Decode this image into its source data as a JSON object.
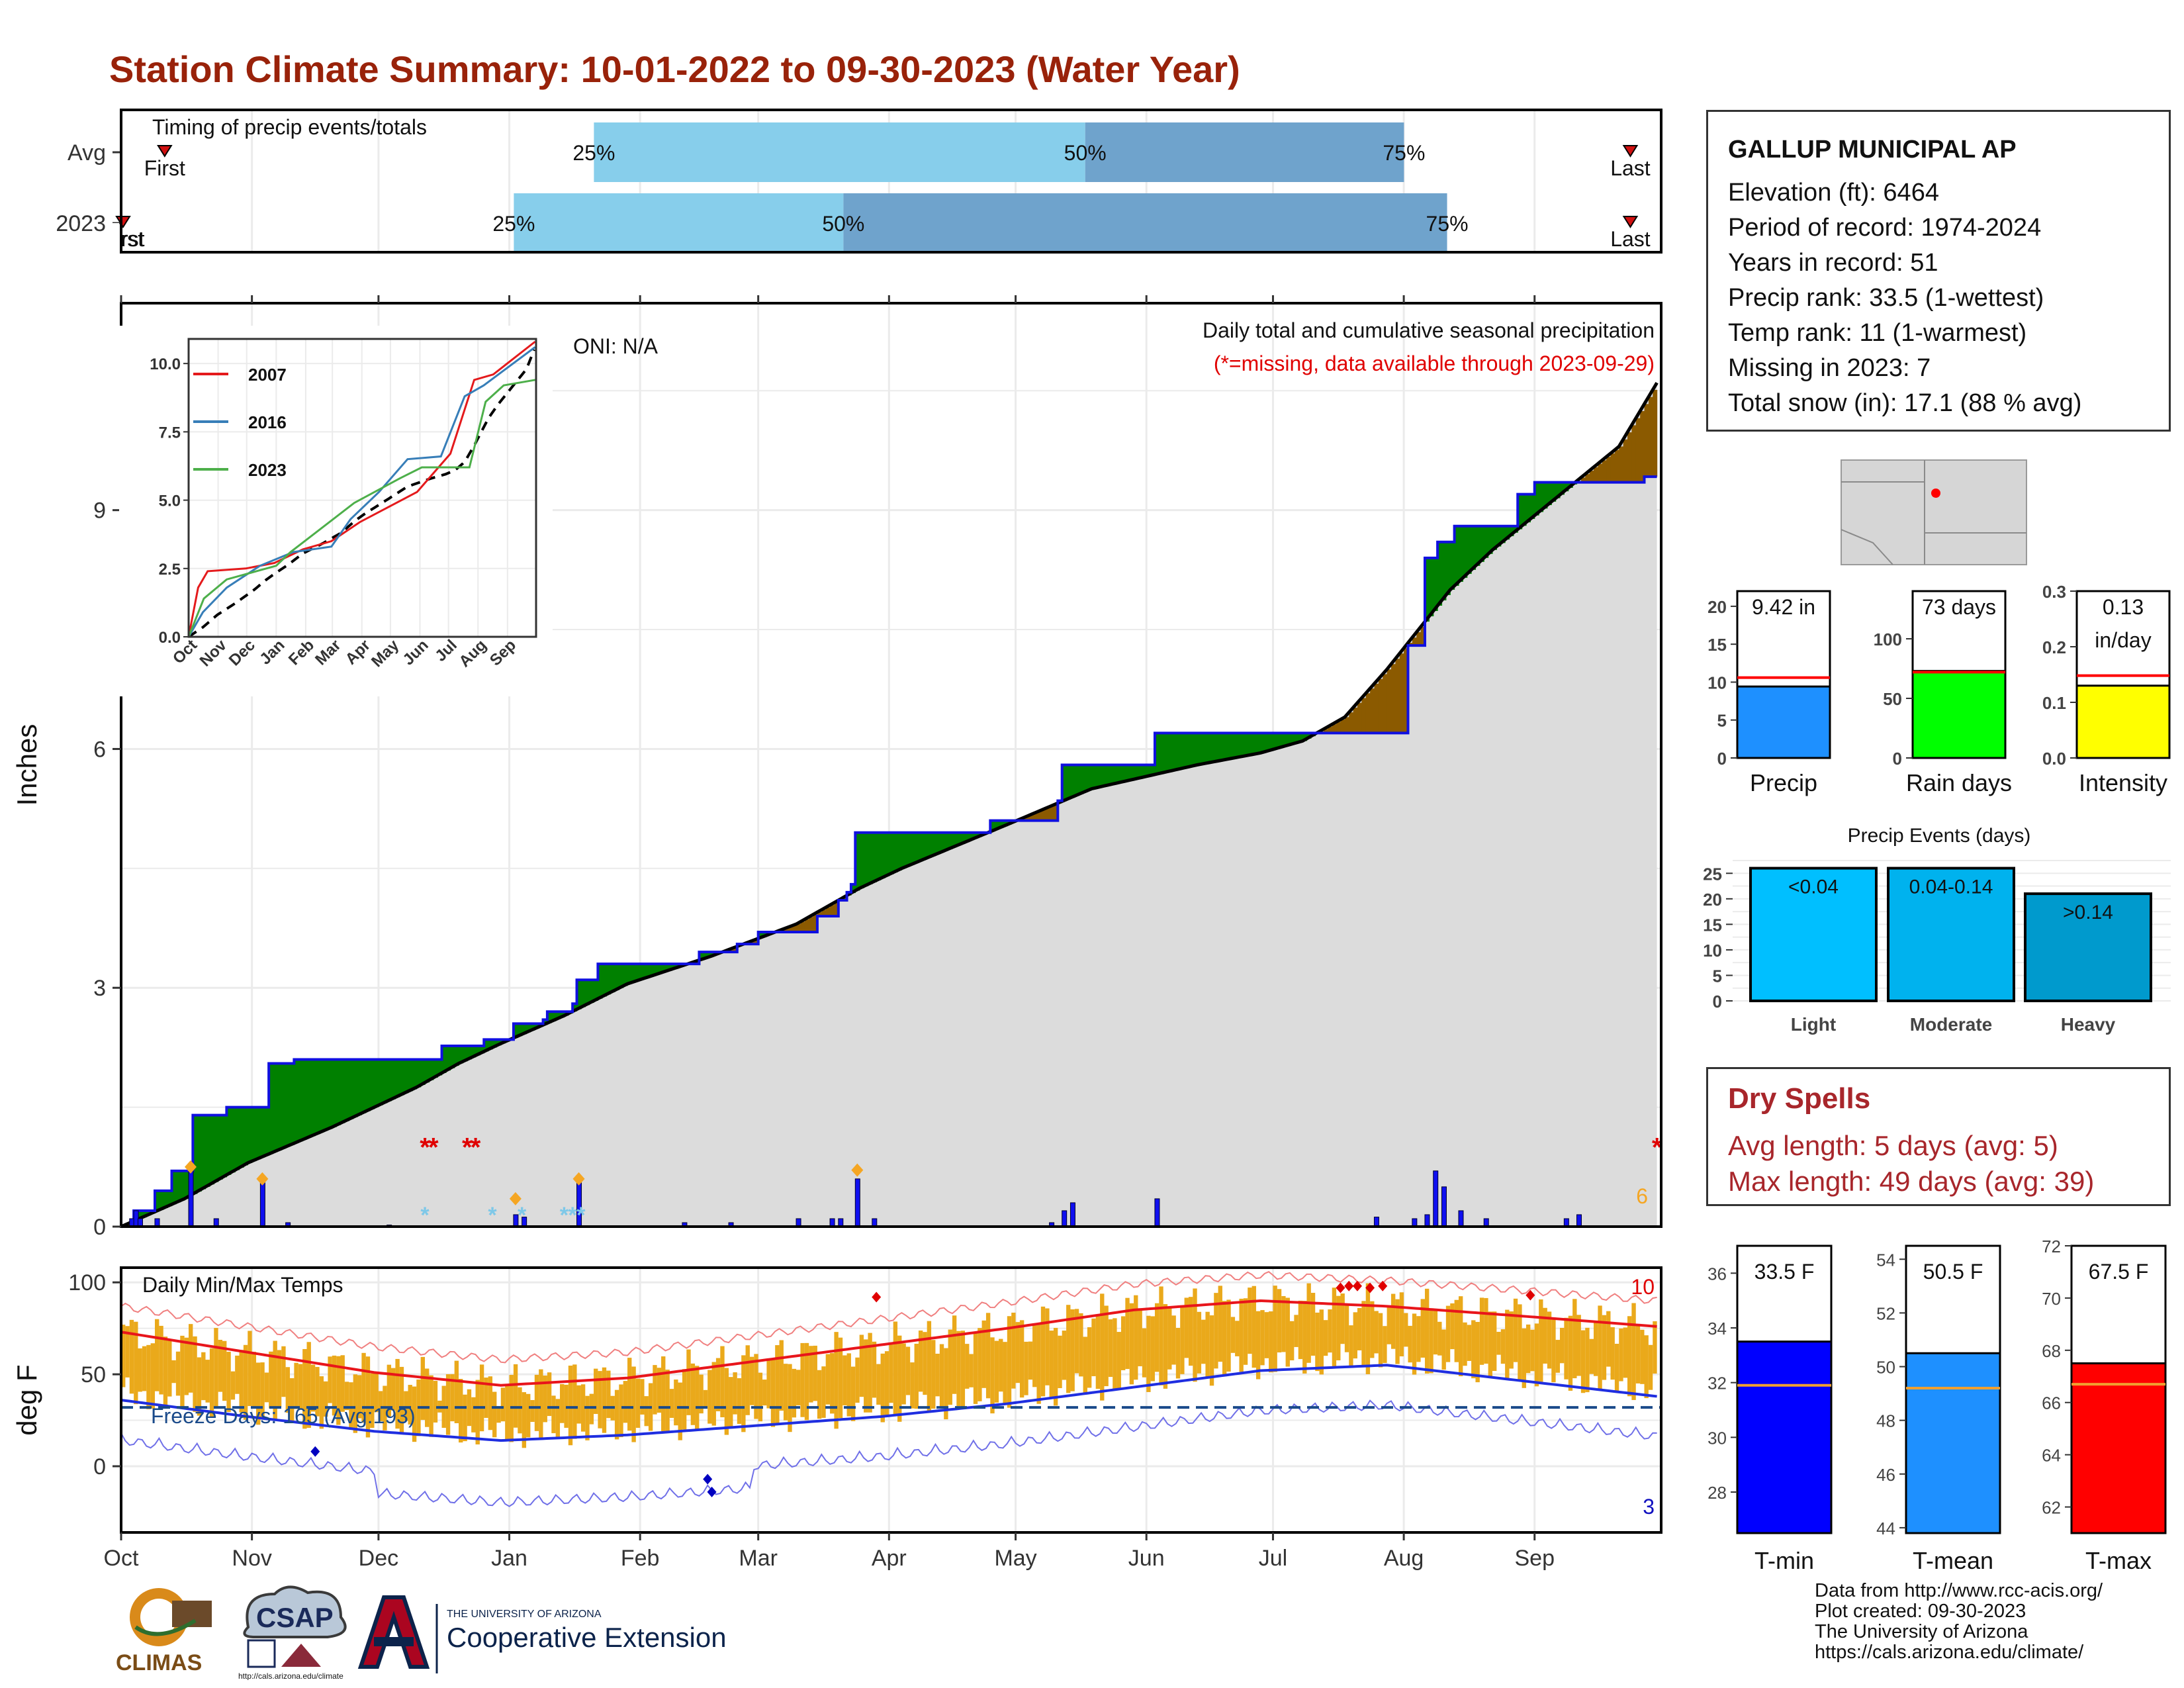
{
  "title": "Station Climate Summary: 10-01-2022 to 09-30-2023 (Water Year)",
  "colors": {
    "title": "#99220a",
    "light_blue": "#87ceeb",
    "mid_blue": "#6fa3cc",
    "wetter_fill": "#008000",
    "drier_fill": "#8b5a00",
    "cum_fill": "#dcdcdc",
    "precip_bar": "#1f5bd6",
    "temp_bar": "#eaa91b",
    "max_line": "#e8151b",
    "min_line": "#1f2ee0",
    "dry_text": "#a8262b"
  },
  "timing": {
    "header": "Timing of precip events/totals",
    "rows": [
      {
        "label": "Avg",
        "first_label": "First",
        "last_label": "Last",
        "first_frac": 0.027,
        "last_frac": 0.98,
        "p25": 0.307,
        "p50": 0.626,
        "p75": 0.833,
        "p25_label": "25%",
        "p50_label": "50%",
        "p75_label": "75%"
      },
      {
        "label": "2023",
        "first_label": "First",
        "last_label": "Last",
        "first_frac": 0.0,
        "last_frac": 0.98,
        "p25": 0.255,
        "p50": 0.469,
        "p75": 0.861,
        "p25_label": "25%",
        "p50_label": "50%",
        "p75_label": "75%"
      }
    ]
  },
  "main": {
    "note1": "Daily total and cumulative seasonal precipitation",
    "note2": "(*=missing, data available through 2023-09-29)",
    "oni": "ONI: N/A",
    "ylabel": "Inches",
    "yticks": [
      "0",
      "3",
      "6",
      "9"
    ],
    "count_label": "6"
  },
  "months": [
    "Oct",
    "Nov",
    "Dec",
    "Jan",
    "Feb",
    "Mar",
    "Apr",
    "May",
    "Jun",
    "Jul",
    "Aug",
    "Sep"
  ],
  "inset": {
    "legend": [
      "2007",
      "2016",
      "2023"
    ],
    "yticks": [
      "0.0",
      "2.5",
      "5.0",
      "7.5",
      "10.0"
    ],
    "months": [
      "Oct",
      "Nov",
      "Dec",
      "Jan",
      "Feb",
      "Mar",
      "Apr",
      "May",
      "Jun",
      "Jul",
      "Aug",
      "Sep"
    ]
  },
  "temp": {
    "header": "Daily Min/Max Temps",
    "freeze": "Freeze Days: 165 (Avg:193)",
    "ylabel": "deg F",
    "yticks": [
      "0",
      "50",
      "100"
    ],
    "hot_count": "10",
    "cold_count": "3"
  },
  "station": {
    "name": "GALLUP MUNICIPAL AP",
    "lines": [
      "Elevation (ft): 6464",
      "Period of record: 1974-2024",
      "Years in record: 51",
      "Precip rank: 33.5 (1-wettest)",
      "Temp rank: 11 (1-warmest)",
      "Missing in 2023: 7",
      "Total snow (in): 17.1 (88 % avg)"
    ]
  },
  "summary_bars": [
    {
      "label": "Precip",
      "value_text": "9.42 in",
      "value": 9.42,
      "avg": 10.6,
      "ymax": 22,
      "ticks": [
        "0",
        "5",
        "10",
        "15",
        "20"
      ],
      "tickvals": [
        0,
        5,
        10,
        15,
        20
      ],
      "color": "#1e90ff"
    },
    {
      "label": "Rain days",
      "value_text": "73 days",
      "value": 73,
      "avg": 72,
      "ymax": 140,
      "ticks": [
        "0",
        "50",
        "100"
      ],
      "tickvals": [
        0,
        50,
        100
      ],
      "color": "#00ff00"
    },
    {
      "label": "Intensity",
      "value_text": "0.13",
      "value_text2": "in/day",
      "value": 0.13,
      "avg": 0.148,
      "ymax": 0.3,
      "ticks": [
        "0.0",
        "0.1",
        "0.2",
        "0.3"
      ],
      "tickvals": [
        0,
        0.1,
        0.2,
        0.3
      ],
      "color": "#ffff00"
    }
  ],
  "events": {
    "title": "Precip Events (days)",
    "bars": [
      {
        "label": "Light",
        "range": "<0.04",
        "value": 26,
        "color": "#00bfff"
      },
      {
        "label": "Moderate",
        "range": "0.04-0.14",
        "value": 26,
        "color": "#00b2ee"
      },
      {
        "label": "Heavy",
        "range": ">0.14",
        "value": 21,
        "color": "#009acd"
      }
    ],
    "ticks": [
      "0",
      "5",
      "10",
      "15",
      "20",
      "25"
    ]
  },
  "dry": {
    "header": "Dry Spells",
    "avg": "Avg length: 5 days (avg: 5)",
    "max": "Max length: 49 days (avg: 39)"
  },
  "temp_bars": [
    {
      "label": "T-min",
      "value_text": "33.5 F",
      "value": 33.5,
      "avg": 31.9,
      "ymin": 26.5,
      "ymax": 37,
      "ticks": [
        "28",
        "30",
        "32",
        "34",
        "36"
      ],
      "tickvals": [
        28,
        30,
        32,
        34,
        36
      ],
      "color": "#0000ff"
    },
    {
      "label": "T-mean",
      "value_text": "50.5 F",
      "value": 50.5,
      "avg": 49.2,
      "ymin": 43.8,
      "ymax": 54.5,
      "ticks": [
        "44",
        "46",
        "48",
        "50",
        "52",
        "54"
      ],
      "tickvals": [
        44,
        46,
        48,
        50,
        52,
        54
      ],
      "color": "#1e90ff"
    },
    {
      "label": "T-max",
      "value_text": "67.5 F",
      "value": 67.5,
      "avg": 66.7,
      "ymin": 61,
      "ymax": 72,
      "ticks": [
        "62",
        "64",
        "66",
        "68",
        "70",
        "72"
      ],
      "tickvals": [
        62,
        64,
        66,
        68,
        70,
        72
      ],
      "color": "#ff0000"
    }
  ],
  "credits": [
    "Data from http://www.rcc-acis.org/",
    "Plot created: 09-30-2023",
    "The University of Arizona",
    "https://cals.arizona.edu/climate/"
  ],
  "logos": {
    "climas": "CLIMAS",
    "csap": "CSAP",
    "csap_url": "http://cals.arizona.edu/climate",
    "ua_small": "THE UNIVERSITY OF ARIZONA",
    "ua_big": "Cooperative Extension"
  },
  "chart_data": [
    {
      "type": "area",
      "title": "Daily total and cumulative seasonal precipitation",
      "ylabel": "Inches",
      "ylim": [
        0,
        11.6
      ],
      "x_month_starts": [
        "Oct",
        "Nov",
        "Dec",
        "Jan",
        "Feb",
        "Mar",
        "Apr",
        "May",
        "Jun",
        "Jul",
        "Aug",
        "Sep"
      ],
      "series": [
        {
          "name": "2023",
          "cum_knots": [
            [
              0,
              0
            ],
            [
              3,
              0.2
            ],
            [
              8,
              0.45
            ],
            [
              12,
              0.7
            ],
            [
              16,
              0.7
            ],
            [
              17,
              1.4
            ],
            [
              24,
              1.4
            ],
            [
              25,
              1.5
            ],
            [
              34,
              1.5
            ],
            [
              35,
              2.05
            ],
            [
              40,
              2.05
            ],
            [
              41,
              2.1
            ],
            [
              75,
              2.1
            ],
            [
              76,
              2.27
            ],
            [
              85,
              2.27
            ],
            [
              86,
              2.35
            ],
            [
              92,
              2.35
            ],
            [
              93,
              2.55
            ],
            [
              100,
              2.6
            ],
            [
              101,
              2.7
            ],
            [
              107,
              2.8
            ],
            [
              108,
              3.1
            ],
            [
              112,
              3.1
            ],
            [
              113,
              3.3
            ],
            [
              133,
              3.3
            ],
            [
              137,
              3.45
            ],
            [
              146,
              3.55
            ],
            [
              151,
              3.7
            ],
            [
              165,
              3.9
            ],
            [
              170,
              4.1
            ],
            [
              172,
              4.2
            ],
            [
              173,
              4.3
            ],
            [
              174,
              4.95
            ],
            [
              206,
              5.1
            ],
            [
              222,
              5.35
            ],
            [
              223,
              5.8
            ],
            [
              244,
              5.8
            ],
            [
              245,
              6.2
            ],
            [
              295,
              6.2
            ],
            [
              305,
              7.3
            ],
            [
              309,
              8.4
            ],
            [
              312,
              8.6
            ],
            [
              316,
              8.8
            ],
            [
              330,
              8.8
            ],
            [
              331,
              9.2
            ],
            [
              335,
              9.35
            ],
            [
              361,
              9.42
            ],
            [
              364,
              9.42
            ]
          ]
        },
        {
          "name": "Avg",
          "cum_knots": [
            [
              0,
              0
            ],
            [
              15,
              0.35
            ],
            [
              30,
              0.8
            ],
            [
              50,
              1.25
            ],
            [
              60,
              1.5
            ],
            [
              70,
              1.75
            ],
            [
              80,
              2.05
            ],
            [
              90,
              2.3
            ],
            [
              105,
              2.65
            ],
            [
              120,
              3.05
            ],
            [
              140,
              3.4
            ],
            [
              160,
              3.8
            ],
            [
              175,
              4.25
            ],
            [
              185,
              4.5
            ],
            [
              210,
              5.05
            ],
            [
              230,
              5.5
            ],
            [
              255,
              5.8
            ],
            [
              270,
              5.95
            ],
            [
              280,
              6.1
            ],
            [
              290,
              6.4
            ],
            [
              300,
              7.0
            ],
            [
              315,
              8.0
            ],
            [
              325,
              8.5
            ],
            [
              340,
              9.15
            ],
            [
              355,
              9.8
            ],
            [
              364,
              10.6
            ]
          ]
        }
      ],
      "daily_bars_inches": [
        [
          2,
          0.1
        ],
        [
          3,
          0.2
        ],
        [
          4,
          0.1
        ],
        [
          8,
          0.1
        ],
        [
          16,
          0.7
        ],
        [
          22,
          0.1
        ],
        [
          33,
          0.55
        ],
        [
          39,
          0.05
        ],
        [
          63,
          0.02
        ],
        [
          93,
          0.15
        ],
        [
          95,
          0.12
        ],
        [
          108,
          0.55
        ],
        [
          133,
          0.05
        ],
        [
          144,
          0.05
        ],
        [
          160,
          0.1
        ],
        [
          168,
          0.1
        ],
        [
          170,
          0.1
        ],
        [
          174,
          0.6
        ],
        [
          178,
          0.1
        ],
        [
          220,
          0.05
        ],
        [
          223,
          0.2
        ],
        [
          225,
          0.3
        ],
        [
          245,
          0.35
        ],
        [
          297,
          0.12
        ],
        [
          306,
          0.1
        ],
        [
          309,
          0.15
        ],
        [
          311,
          0.7
        ],
        [
          313,
          0.5
        ],
        [
          317,
          0.2
        ],
        [
          323,
          0.1
        ],
        [
          342,
          0.1
        ],
        [
          345,
          0.15
        ]
      ]
    },
    {
      "type": "line",
      "title": "Daily Min/Max Temps",
      "ylabel": "deg F",
      "ylim": [
        -35,
        105
      ],
      "series": [
        {
          "name": "avg_max",
          "knots": [
            [
              0,
              73
            ],
            [
              30,
              62
            ],
            [
              60,
              51
            ],
            [
              90,
              44
            ],
            [
              120,
              48
            ],
            [
              150,
              57
            ],
            [
              180,
              66
            ],
            [
              210,
              75
            ],
            [
              240,
              85
            ],
            [
              270,
              90
            ],
            [
              300,
              87
            ],
            [
              330,
              82
            ],
            [
              364,
              76
            ]
          ]
        },
        {
          "name": "avg_min",
          "knots": [
            [
              0,
              36
            ],
            [
              30,
              27
            ],
            [
              60,
              19
            ],
            [
              90,
              14
            ],
            [
              120,
              17
            ],
            [
              150,
              22
            ],
            [
              180,
              27
            ],
            [
              210,
              34
            ],
            [
              240,
              43
            ],
            [
              270,
              52
            ],
            [
              300,
              55
            ],
            [
              330,
              47
            ],
            [
              364,
              38
            ]
          ]
        }
      ]
    },
    {
      "type": "line",
      "title": "",
      "ylim": [
        0,
        11
      ],
      "series": [
        {
          "name": "2007",
          "knots": [
            [
              0,
              0
            ],
            [
              10,
              1.8
            ],
            [
              20,
              2.4
            ],
            [
              60,
              2.5
            ],
            [
              90,
              2.7
            ],
            [
              120,
              3.2
            ],
            [
              150,
              3.5
            ],
            [
              180,
              4.2
            ],
            [
              240,
              5.3
            ],
            [
              275,
              6.7
            ],
            [
              300,
              9.4
            ],
            [
              320,
              9.6
            ],
            [
              364,
              10.8
            ]
          ]
        },
        {
          "name": "2016",
          "knots": [
            [
              0,
              0
            ],
            [
              15,
              0.9
            ],
            [
              40,
              1.8
            ],
            [
              75,
              2.6
            ],
            [
              110,
              3.1
            ],
            [
              150,
              3.3
            ],
            [
              170,
              4.3
            ],
            [
              200,
              5.3
            ],
            [
              230,
              6.5
            ],
            [
              265,
              6.6
            ],
            [
              290,
              8.8
            ],
            [
              310,
              9.2
            ],
            [
              364,
              10.6
            ]
          ]
        },
        {
          "name": "2023",
          "knots": [
            [
              0,
              0
            ],
            [
              16,
              1.4
            ],
            [
              40,
              2.1
            ],
            [
              92,
              2.6
            ],
            [
              107,
              3.1
            ],
            [
              174,
              4.9
            ],
            [
              222,
              5.8
            ],
            [
              245,
              6.2
            ],
            [
              295,
              6.2
            ],
            [
              312,
              8.6
            ],
            [
              331,
              9.2
            ],
            [
              364,
              9.4
            ]
          ]
        }
      ]
    }
  ]
}
